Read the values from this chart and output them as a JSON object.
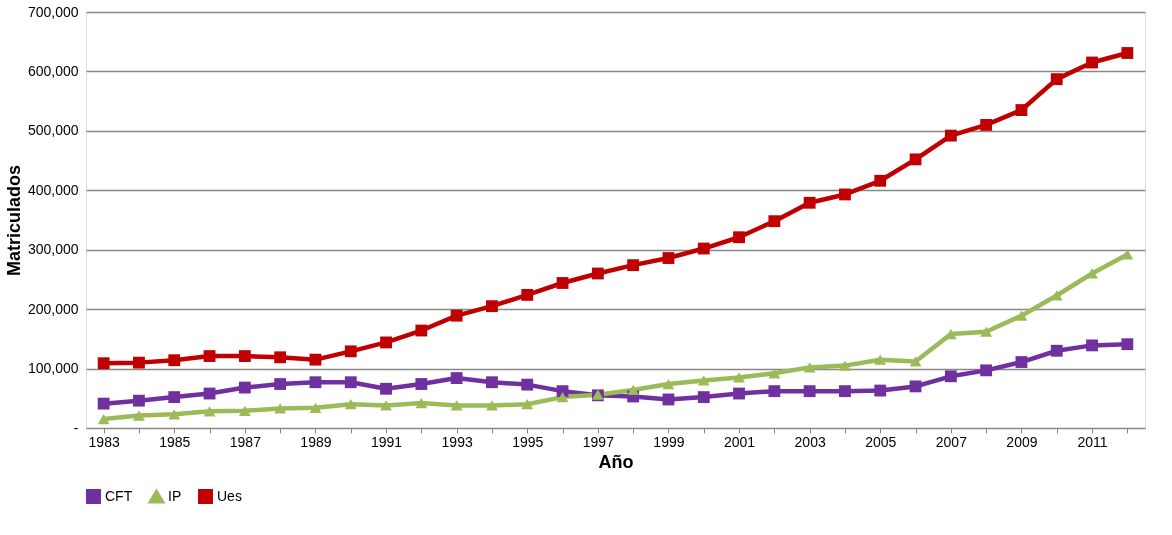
{
  "chart_data": {
    "type": "line",
    "xlabel": "Año",
    "ylabel": "Matriculados",
    "categories": [
      "1983",
      null,
      "1985",
      null,
      "1987",
      null,
      "1989",
      null,
      "1991",
      null,
      "1993",
      null,
      "1995",
      null,
      "1997",
      null,
      "1999",
      null,
      "2001",
      null,
      "2003",
      null,
      "2005",
      null,
      "2007",
      null,
      "2009",
      null,
      "2011",
      null
    ],
    "series": [
      {
        "name": "CFT",
        "color": "#7030a0",
        "marker": "square",
        "values": [
          41000,
          46000,
          52000,
          58000,
          68000,
          74000,
          77000,
          77000,
          66000,
          74000,
          84000,
          77000,
          73000,
          62000,
          55000,
          53000,
          48000,
          52000,
          58000,
          62000,
          62000,
          62000,
          63000,
          70000,
          87000,
          97000,
          111000,
          130000,
          139000,
          141000
        ]
      },
      {
        "name": "IP",
        "color": "#9bbb59",
        "marker": "triangle",
        "values": [
          15000,
          21000,
          23000,
          28000,
          29000,
          33000,
          34000,
          40000,
          38000,
          42000,
          38000,
          38000,
          40000,
          52000,
          56000,
          64000,
          74000,
          80000,
          85000,
          92000,
          102000,
          105000,
          115000,
          112000,
          158000,
          162000,
          189000,
          223000,
          260000,
          292000
        ]
      },
      {
        "name": "Ues",
        "color": "#c00000",
        "marker": "square",
        "values": [
          109000,
          110000,
          114000,
          121000,
          121000,
          119000,
          115000,
          129000,
          144000,
          164000,
          189000,
          205000,
          224000,
          244000,
          260000,
          274000,
          286000,
          302000,
          321000,
          348000,
          379000,
          393000,
          416000,
          452000,
          492000,
          510000,
          535000,
          587000,
          615000,
          631000
        ]
      }
    ],
    "ylim": [
      0,
      700000
    ],
    "yticks": [
      {
        "value": 0,
        "label": "-"
      },
      {
        "value": 100000,
        "label": "100,000"
      },
      {
        "value": 200000,
        "label": "200,000"
      },
      {
        "value": 300000,
        "label": "300,000"
      },
      {
        "value": 400000,
        "label": "400,000"
      },
      {
        "value": 500000,
        "label": "500,000"
      },
      {
        "value": 600000,
        "label": "600,000"
      },
      {
        "value": 700000,
        "label": "700,000"
      }
    ],
    "grid": "y",
    "legend": "bottom",
    "line_style": "solid"
  }
}
